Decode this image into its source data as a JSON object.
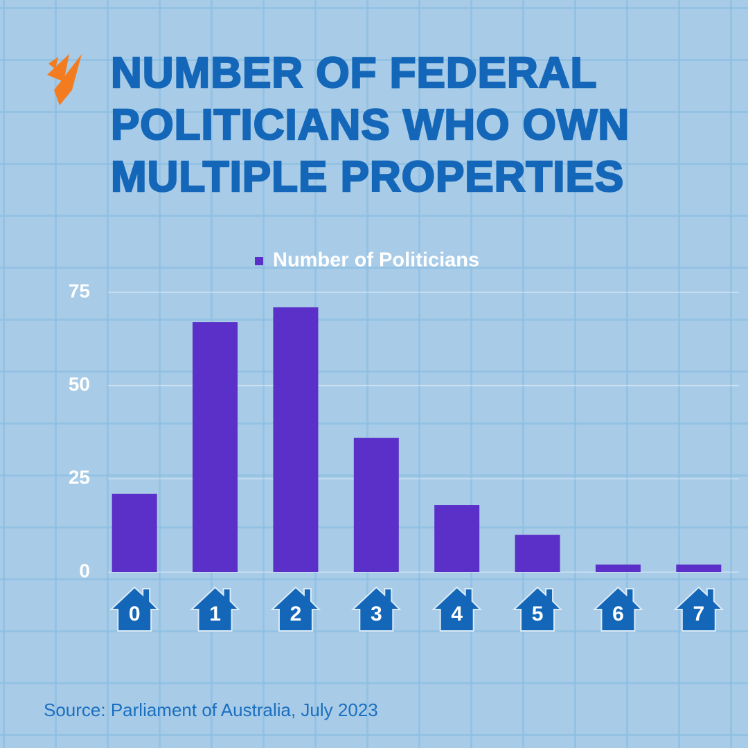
{
  "chart_data": {
    "type": "bar",
    "title": "NUMBER OF FEDERAL POLITICIANS WHO OWN MULTIPLE PROPERTIES",
    "source": "Source: Parliament of Australia, July 2023",
    "categories": [
      "0",
      "1",
      "2",
      "3",
      "4",
      "5",
      "6",
      "7"
    ],
    "series": [
      {
        "name": "Number of Politicians",
        "color": "#5a30c8",
        "values": [
          21,
          67,
          71,
          36,
          18,
          10,
          2,
          2
        ]
      }
    ],
    "ylim": [
      0,
      75
    ],
    "yticks": [
      0,
      25,
      50,
      75
    ],
    "grid": true
  }
}
